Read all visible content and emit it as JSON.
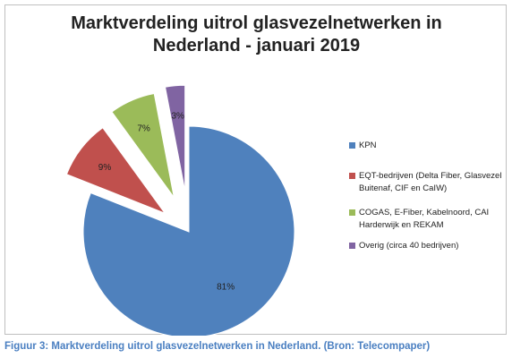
{
  "chart_data": {
    "type": "pie",
    "title_lines": [
      "Marktverdeling uitrol glasvezelnetwerken in",
      "Nederland -   januari 2019"
    ],
    "slices": [
      {
        "name": "KPN",
        "value": 81,
        "label": "81%",
        "color": "#4f81bd"
      },
      {
        "name": "EQT-bedrijven (Delta Fiber, Glasvezel Buitenaf, CIF en CaIW)",
        "value": 9,
        "label": "9%",
        "color": "#c0504d"
      },
      {
        "name": "COGAS, E-Fiber, Kabelnoord, CAI Harderwijk en REKAM",
        "value": 7,
        "label": "7%",
        "color": "#9bbb59"
      },
      {
        "name": "Overig (circa 40 bedrijven)",
        "value": 3,
        "label": "3%",
        "color": "#8064a2"
      }
    ],
    "legend_position": "right"
  },
  "caption": "Figuur 3: Marktverdeling uitrol glasvezelnetwerken in Nederland. (Bron: Telecompaper)"
}
